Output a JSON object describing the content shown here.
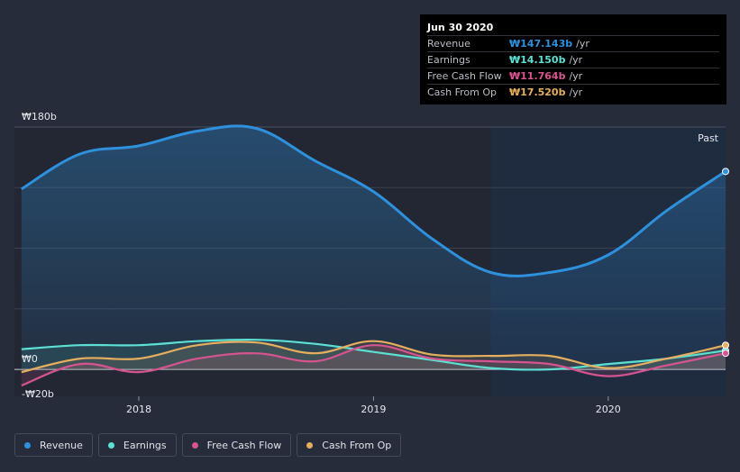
{
  "chart_data": {
    "type": "area",
    "currency_prefix": "₩",
    "y_labels": [
      "₩180b",
      "₩0",
      "-₩20b"
    ],
    "ylim": [
      -20,
      180
    ],
    "x_ticks": [
      "2018",
      "2019",
      "2020"
    ],
    "x_tick_values": [
      2018.0,
      2019.0,
      2020.0
    ],
    "xlim": [
      2017.47,
      2020.5
    ],
    "past_label": "Past",
    "past_start": 2019.5,
    "series": [
      {
        "name": "Revenue",
        "color": "#2f90dc",
        "x": [
          2017.5,
          2017.75,
          2018.0,
          2018.25,
          2018.5,
          2018.75,
          2019.0,
          2019.25,
          2019.5,
          2019.75,
          2020.0,
          2020.25,
          2020.5
        ],
        "values": [
          134,
          160,
          166,
          177,
          179,
          155,
          132,
          97,
          72,
          72,
          85,
          118,
          147
        ]
      },
      {
        "name": "Earnings",
        "color": "#5ce0d3",
        "x": [
          2017.5,
          2017.75,
          2018.0,
          2018.25,
          2018.5,
          2018.75,
          2019.0,
          2019.25,
          2019.5,
          2019.75,
          2020.0,
          2020.25,
          2020.5
        ],
        "values": [
          15,
          18,
          18,
          21,
          22,
          19,
          13,
          7,
          1,
          0,
          4,
          8,
          14
        ]
      },
      {
        "name": "Free Cash Flow",
        "color": "#d6548f",
        "x": [
          2017.5,
          2017.75,
          2018.0,
          2018.25,
          2018.5,
          2018.75,
          2019.0,
          2019.25,
          2019.5,
          2019.75,
          2020.0,
          2020.25,
          2020.5
        ],
        "values": [
          -12,
          4,
          -2,
          8,
          12,
          6,
          18,
          8,
          6,
          4,
          -5,
          3,
          12
        ]
      },
      {
        "name": "Cash From Op",
        "color": "#e6ae5f",
        "x": [
          2017.5,
          2017.75,
          2018.0,
          2018.25,
          2018.5,
          2018.75,
          2019.0,
          2019.25,
          2019.5,
          2019.75,
          2020.0,
          2020.25,
          2020.5
        ],
        "values": [
          -2,
          8,
          8,
          18,
          20,
          12,
          21,
          11,
          10,
          10,
          1,
          8,
          18
        ]
      }
    ]
  },
  "tooltip": {
    "date": "Jun 30 2020",
    "rows": [
      {
        "label": "Revenue",
        "value": "₩147.143b",
        "unit": "/yr",
        "color": "#2f90dc"
      },
      {
        "label": "Earnings",
        "value": "₩14.150b",
        "unit": "/yr",
        "color": "#5ce0d3"
      },
      {
        "label": "Free Cash Flow",
        "value": "₩11.764b",
        "unit": "/yr",
        "color": "#d6548f"
      },
      {
        "label": "Cash From Op",
        "value": "₩17.520b",
        "unit": "/yr",
        "color": "#e6ae5f"
      }
    ]
  },
  "legend": [
    {
      "label": "Revenue",
      "color": "#2f90dc"
    },
    {
      "label": "Earnings",
      "color": "#5ce0d3"
    },
    {
      "label": "Free Cash Flow",
      "color": "#d6548f"
    },
    {
      "label": "Cash From Op",
      "color": "#e6ae5f"
    }
  ]
}
